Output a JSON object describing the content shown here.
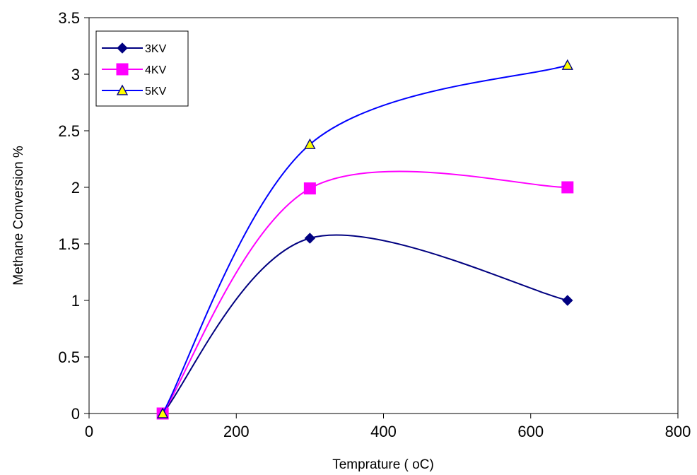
{
  "chart_data": {
    "type": "line",
    "title": "",
    "xlabel": "Temprature ( oC)",
    "ylabel": "Methane Conversion %",
    "xlim": [
      0,
      800
    ],
    "ylim": [
      0,
      3.5
    ],
    "x_ticks": [
      0,
      200,
      400,
      600,
      800
    ],
    "y_ticks": [
      0,
      0.5,
      1,
      1.5,
      2,
      2.5,
      3,
      3.5
    ],
    "x_tick_labels": [
      "0",
      "200",
      "400",
      "600",
      "800"
    ],
    "y_tick_labels": [
      "0",
      "0.5",
      "1",
      "1.5",
      "2",
      "2.5",
      "3",
      "3.5"
    ],
    "grid": false,
    "legend_position": "top-left",
    "x": [
      100,
      300,
      650
    ],
    "series": [
      {
        "name": "3KV",
        "values": [
          0,
          1.55,
          1.0
        ],
        "color": "#000080",
        "marker": "diamond",
        "marker_fill": "#000080"
      },
      {
        "name": "4KV",
        "values": [
          0,
          1.99,
          2.0
        ],
        "color": "#ff00ff",
        "marker": "square",
        "marker_fill": "#ff00ff"
      },
      {
        "name": "5KV",
        "values": [
          0,
          2.38,
          3.08
        ],
        "color": "#0000ff",
        "marker": "triangle",
        "marker_fill": "#ffff00"
      }
    ]
  }
}
